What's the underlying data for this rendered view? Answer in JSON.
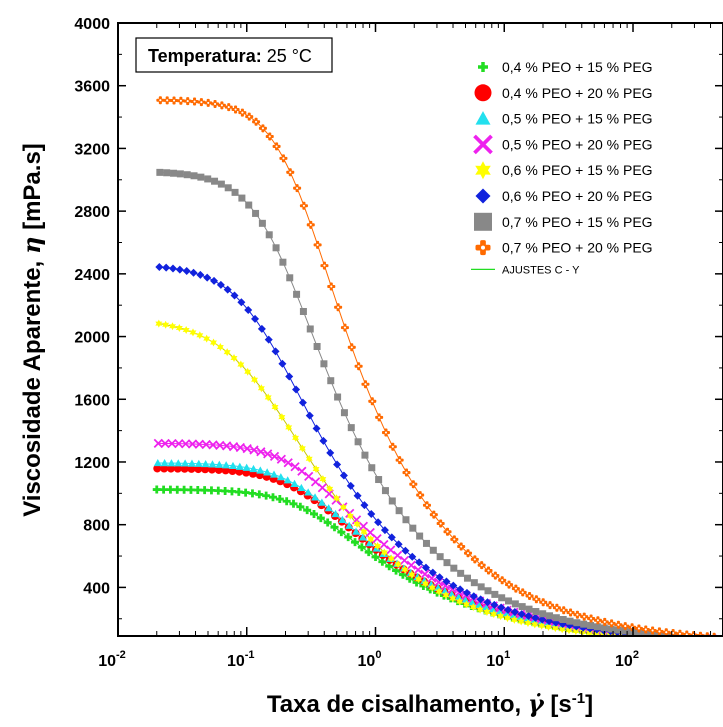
{
  "chart_data": {
    "type": "scatter",
    "xlabel": "Taxa de cisalhamento, γ̇ [s⁻¹]",
    "xlabel_main": "Taxa de cisalhamento, ",
    "xlabel_symbol": "γ̇",
    "xlabel_unit_open": " [s",
    "xlabel_unit_exp": "-1",
    "xlabel_unit_close": "]",
    "ylabel": "Viscosidade Aparente, η [mPa.s]",
    "ylabel_main": "Viscosidade Aparente, ",
    "ylabel_symbol": "η",
    "ylabel_unit": " [mPa.s]",
    "x_scale": "log",
    "xlim": [
      0.01,
      500
    ],
    "ylim": [
      90,
      4000
    ],
    "x_ticks": [
      {
        "value": 0.01,
        "base": "10",
        "exp": "-2"
      },
      {
        "value": 0.1,
        "base": "10",
        "exp": "-1"
      },
      {
        "value": 1,
        "base": "10",
        "exp": "0"
      },
      {
        "value": 10,
        "base": "10",
        "exp": "1"
      },
      {
        "value": 100,
        "base": "10",
        "exp": "2"
      }
    ],
    "y_ticks": [
      400,
      800,
      1200,
      1600,
      2000,
      2400,
      2800,
      3200,
      3600,
      4000
    ],
    "grid": false,
    "legend_position": "top-right",
    "annotation": {
      "label": "Temperatura:",
      "value": "25 °C"
    },
    "x_range": [
      0.02,
      500
    ],
    "series": [
      {
        "name": "0,4 % PEO + 15 % PEG",
        "color": "#22dd22",
        "marker": "plus",
        "eta0": 1025,
        "lambda": 3.0,
        "a": 2.0,
        "n": 0.5,
        "points": 82
      },
      {
        "name": "0,4 % PEO + 20 % PEG",
        "color": "#ff0000",
        "marker": "circle",
        "eta0": 1160,
        "lambda": 3.3,
        "a": 2.0,
        "n": 0.5,
        "points": 82
      },
      {
        "name": "0,5 % PEO + 15 % PEG",
        "color": "#22e0ee",
        "marker": "triangle",
        "eta0": 1195,
        "lambda": 3.4,
        "a": 2.0,
        "n": 0.5,
        "points": 82
      },
      {
        "name": "0,5 % PEO + 20 % PEG",
        "color": "#ee22ee",
        "marker": "cross",
        "eta0": 1320,
        "lambda": 3.4,
        "a": 2.0,
        "n": 0.5,
        "points": 82
      },
      {
        "name": "0,6 % PEO + 15 % PEG",
        "color": "#ffff00",
        "marker": "star",
        "eta0": 2120,
        "lambda": 7.5,
        "a": 1.6,
        "n": 0.42,
        "points": 82
      },
      {
        "name": "0,6 % PEO + 20 % PEG",
        "color": "#1122dd",
        "marker": "diamond",
        "eta0": 2460,
        "lambda": 7.5,
        "a": 2.0,
        "n": 0.45,
        "points": 82
      },
      {
        "name": "0,7 % PEO + 15 % PEG",
        "color": "#888888",
        "marker": "square",
        "eta0": 3055,
        "lambda": 5.8,
        "a": 2.2,
        "n": 0.42,
        "points": 82
      },
      {
        "name": "0,7 % PEO + 20 % PEG",
        "color": "#ff6a00",
        "marker": "roundcross",
        "eta0": 3510,
        "lambda": 4.2,
        "a": 2.4,
        "n": 0.42,
        "points": 82
      }
    ],
    "fit_legend": {
      "name": "AJUSTES C - Y",
      "color": "#22dd22"
    }
  }
}
